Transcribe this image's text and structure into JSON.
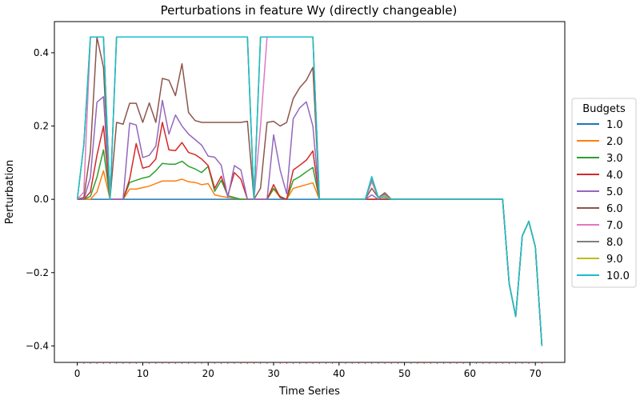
{
  "chart_data": {
    "type": "line",
    "title": "Perturbations in feature Wy (directly changeable)",
    "xlabel": "Time Series",
    "ylabel": "Perturbation",
    "xlim": [
      -3.5,
      74.5
    ],
    "ylim": [
      -0.445,
      0.485
    ],
    "xticks": [
      0,
      10,
      20,
      30,
      40,
      50,
      60,
      70
    ],
    "yticks": [
      -0.4,
      -0.2,
      0.0,
      0.2,
      0.4
    ],
    "ytick_labels": [
      "−0.4",
      "−0.2",
      "0.0",
      "0.2",
      "0.4"
    ],
    "grid": false,
    "legend": {
      "title": "Budgets",
      "placement": "right-outside"
    },
    "x": [
      0,
      1,
      2,
      3,
      4,
      5,
      6,
      7,
      8,
      9,
      10,
      11,
      12,
      13,
      14,
      15,
      16,
      17,
      18,
      19,
      20,
      21,
      22,
      23,
      24,
      25,
      26,
      27,
      28,
      29,
      30,
      31,
      32,
      33,
      34,
      35,
      36,
      37,
      38,
      39,
      40,
      41,
      42,
      43,
      44,
      45,
      46,
      47,
      48,
      49,
      50,
      51,
      52,
      53,
      54,
      55,
      56,
      57,
      58,
      59,
      60,
      61,
      62,
      63,
      64,
      65,
      66,
      67,
      68,
      69,
      70,
      71
    ],
    "series": [
      {
        "name": "1.0",
        "color": "#1f77b4",
        "values": [
          0,
          0,
          0,
          0,
          0,
          0,
          0,
          0,
          0,
          0,
          0,
          0,
          0,
          0,
          0,
          0,
          0,
          0,
          0,
          0,
          0,
          0,
          0,
          0,
          0,
          0,
          0,
          0,
          0,
          0,
          0,
          0,
          0,
          0,
          0,
          0,
          0,
          0,
          0,
          0,
          0,
          0,
          0,
          0,
          0,
          0,
          0,
          0,
          0,
          0,
          0,
          0,
          0,
          0,
          0,
          0,
          0,
          0,
          0,
          0,
          0,
          0,
          0,
          0,
          0,
          0,
          -0.23,
          -0.32,
          -0.1,
          -0.06,
          -0.13,
          -0.4
        ]
      },
      {
        "name": "2.0",
        "color": "#ff7f0e",
        "values": [
          0,
          0,
          0,
          0.02,
          0.078,
          0,
          0,
          0,
          0.028,
          0.028,
          0.032,
          0.036,
          0.043,
          0.05,
          0.05,
          0.05,
          0.055,
          0.048,
          0.046,
          0.04,
          0.043,
          0.012,
          0.008,
          0.005,
          0.003,
          0.001,
          0,
          0,
          0,
          0,
          0.028,
          0.005,
          0,
          0.03,
          0.035,
          0.04,
          0.045,
          0,
          0,
          0,
          0,
          0,
          0,
          0,
          0,
          0,
          0,
          0,
          0,
          0,
          0,
          0,
          0,
          0,
          0,
          0,
          0,
          0,
          0,
          0,
          0,
          0,
          0,
          0,
          0,
          0,
          -0.23,
          -0.32,
          -0.1,
          -0.06,
          -0.13,
          -0.4
        ]
      },
      {
        "name": "3.0",
        "color": "#2ca02c",
        "values": [
          0,
          0,
          0.008,
          0.06,
          0.135,
          0,
          0,
          0,
          0.046,
          0.052,
          0.058,
          0.062,
          0.078,
          0.098,
          0.096,
          0.096,
          0.104,
          0.09,
          0.083,
          0.073,
          0.09,
          0.022,
          0.052,
          0.01,
          0.005,
          0,
          0,
          0,
          0,
          0,
          0.03,
          0.008,
          0,
          0.052,
          0.062,
          0.075,
          0.087,
          0,
          0,
          0,
          0,
          0,
          0,
          0,
          0,
          0,
          0,
          0,
          0,
          0,
          0,
          0,
          0,
          0,
          0,
          0,
          0,
          0,
          0,
          0,
          0,
          0,
          0,
          0,
          0,
          0,
          -0.23,
          -0.32,
          -0.1,
          -0.06,
          -0.13,
          -0.4
        ]
      },
      {
        "name": "4.0",
        "color": "#d62728",
        "values": [
          0,
          0,
          0.02,
          0.12,
          0.2,
          0,
          0,
          0,
          0.055,
          0.152,
          0.085,
          0.09,
          0.11,
          0.21,
          0.135,
          0.133,
          0.155,
          0.128,
          0.122,
          0.11,
          0.092,
          0.03,
          0.063,
          0.01,
          0.073,
          0.055,
          0,
          0,
          0,
          0,
          0.04,
          0.005,
          0,
          0.08,
          0.093,
          0.107,
          0.132,
          0,
          0,
          0,
          0,
          0,
          0,
          0,
          0,
          0,
          0,
          0,
          0,
          0,
          0,
          0,
          0,
          0,
          0,
          0,
          0,
          0,
          0,
          0,
          0,
          0,
          0,
          0,
          0,
          0,
          -0.23,
          -0.32,
          -0.1,
          -0.06,
          -0.13,
          -0.4
        ]
      },
      {
        "name": "5.0",
        "color": "#9467bd",
        "values": [
          0,
          0,
          0.06,
          0.265,
          0.28,
          0,
          0,
          0,
          0.208,
          0.203,
          0.114,
          0.12,
          0.145,
          0.27,
          0.178,
          0.23,
          0.2,
          0.178,
          0.163,
          0.148,
          0.118,
          0.115,
          0.093,
          0.005,
          0.092,
          0.08,
          0,
          0,
          0,
          0,
          0.176,
          0.08,
          0.015,
          0.22,
          0.25,
          0.266,
          0.2,
          0,
          0,
          0,
          0,
          0,
          0,
          0,
          0,
          0.012,
          0,
          0.012,
          0,
          0,
          0,
          0,
          0,
          0,
          0,
          0,
          0,
          0,
          0,
          0,
          0,
          0,
          0,
          0,
          0,
          0,
          -0.23,
          -0.32,
          -0.1,
          -0.06,
          -0.13,
          -0.4
        ]
      },
      {
        "name": "6.0",
        "color": "#8c564b",
        "values": [
          0,
          0.005,
          0.13,
          0.443,
          0.36,
          0,
          0.21,
          0.205,
          0.262,
          0.262,
          0.21,
          0.263,
          0.21,
          0.33,
          0.325,
          0.283,
          0.37,
          0.237,
          0.215,
          0.21,
          0.21,
          0.21,
          0.21,
          0.21,
          0.21,
          0.21,
          0.213,
          0,
          0.03,
          0.21,
          0.213,
          0.2,
          0.21,
          0.275,
          0.305,
          0.325,
          0.36,
          0,
          0,
          0,
          0,
          0,
          0,
          0,
          0,
          0.03,
          0.005,
          0.018,
          0,
          0,
          0,
          0,
          0,
          0,
          0,
          0,
          0,
          0,
          0,
          0,
          0,
          0,
          0,
          0,
          0,
          0,
          -0.23,
          -0.32,
          -0.1,
          -0.06,
          -0.13,
          -0.4
        ]
      },
      {
        "name": "7.0",
        "color": "#e377c2",
        "values": [
          0,
          0.02,
          0.443,
          0.443,
          0.443,
          0,
          0.443,
          0.443,
          0.443,
          0.443,
          0.443,
          0.443,
          0.443,
          0.443,
          0.443,
          0.443,
          0.443,
          0.443,
          0.443,
          0.443,
          0.443,
          0.443,
          0.443,
          0.443,
          0.443,
          0.443,
          0.443,
          0,
          0.2,
          0.443,
          0.443,
          0.443,
          0.443,
          0.443,
          0.443,
          0.443,
          0.443,
          0,
          0,
          0,
          0,
          0,
          0,
          0,
          0,
          0.048,
          0.005,
          0.012,
          0,
          0,
          0,
          0,
          0,
          0,
          0,
          0,
          0,
          0,
          0,
          0,
          0,
          0,
          0,
          0,
          0,
          0,
          -0.23,
          -0.32,
          -0.1,
          -0.06,
          -0.13,
          -0.4
        ]
      },
      {
        "name": "8.0",
        "color": "#7f7f7f",
        "values": [
          0,
          0.15,
          0.443,
          0.443,
          0.443,
          0,
          0.443,
          0.443,
          0.443,
          0.443,
          0.443,
          0.443,
          0.443,
          0.443,
          0.443,
          0.443,
          0.443,
          0.443,
          0.443,
          0.443,
          0.443,
          0.443,
          0.443,
          0.443,
          0.443,
          0.443,
          0.443,
          0,
          0.443,
          0.443,
          0.443,
          0.443,
          0.443,
          0.443,
          0.443,
          0.443,
          0.443,
          0,
          0,
          0,
          0,
          0,
          0,
          0,
          0,
          0.055,
          0.005,
          0.015,
          0,
          0,
          0,
          0,
          0,
          0,
          0,
          0,
          0,
          0,
          0,
          0,
          0,
          0,
          0,
          0,
          0,
          0,
          -0.23,
          -0.32,
          -0.1,
          -0.06,
          -0.13,
          -0.4
        ]
      },
      {
        "name": "9.0",
        "color": "#bcbd22",
        "values": [
          0,
          0.15,
          0.443,
          0.443,
          0.443,
          0,
          0.443,
          0.443,
          0.443,
          0.443,
          0.443,
          0.443,
          0.443,
          0.443,
          0.443,
          0.443,
          0.443,
          0.443,
          0.443,
          0.443,
          0.443,
          0.443,
          0.443,
          0.443,
          0.443,
          0.443,
          0.443,
          0,
          0.443,
          0.443,
          0.443,
          0.443,
          0.443,
          0.443,
          0.443,
          0.443,
          0.443,
          0,
          0,
          0,
          0,
          0,
          0,
          0,
          0,
          0.06,
          0.005,
          0.008,
          0,
          0,
          0,
          0,
          0,
          0,
          0,
          0,
          0,
          0,
          0,
          0,
          0,
          0,
          0,
          0,
          0,
          0,
          -0.23,
          -0.32,
          -0.1,
          -0.06,
          -0.13,
          -0.4
        ]
      },
      {
        "name": "10.0",
        "color": "#17becf",
        "values": [
          0,
          0.15,
          0.443,
          0.443,
          0.443,
          0,
          0.443,
          0.443,
          0.443,
          0.443,
          0.443,
          0.443,
          0.443,
          0.443,
          0.443,
          0.443,
          0.443,
          0.443,
          0.443,
          0.443,
          0.443,
          0.443,
          0.443,
          0.443,
          0.443,
          0.443,
          0.443,
          0,
          0.443,
          0.443,
          0.443,
          0.443,
          0.443,
          0.443,
          0.443,
          0.443,
          0.443,
          0,
          0,
          0,
          0,
          0,
          0,
          0,
          0,
          0.062,
          0.005,
          0.005,
          0,
          0,
          0,
          0,
          0,
          0,
          0,
          0,
          0,
          0,
          0,
          0,
          0,
          0,
          0,
          0,
          0,
          0,
          -0.23,
          -0.32,
          -0.1,
          -0.06,
          -0.13,
          -0.4
        ]
      }
    ]
  }
}
